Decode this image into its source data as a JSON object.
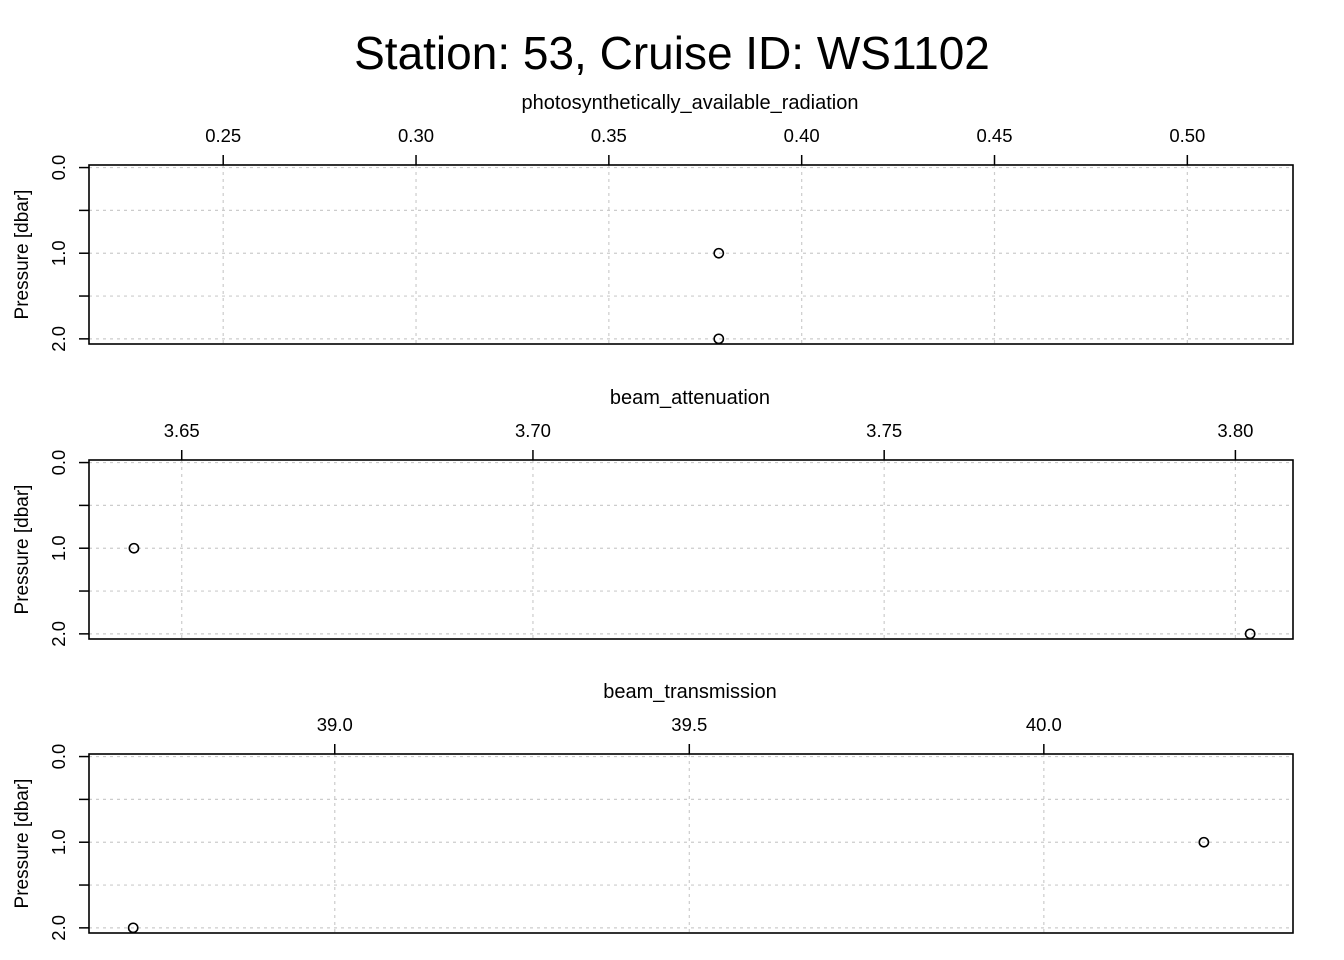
{
  "title": "Station: 53, Cruise ID: WS1102",
  "chart_data": [
    {
      "type": "scatter",
      "title": "photosynthetically_available_radiation",
      "xlabel": "",
      "ylabel": "Pressure [dbar]",
      "xlim": [
        0.2152,
        0.5274
      ],
      "ylim": [
        2.06,
        -0.03
      ],
      "y_reversed": true,
      "x_axis_position": "top",
      "grid": true,
      "xticks": [
        0.25,
        0.3,
        0.35,
        0.4,
        0.45,
        0.5
      ],
      "xtick_labels": [
        "0.25",
        "0.30",
        "0.35",
        "0.40",
        "0.45",
        "0.50"
      ],
      "yticks": [
        0.0,
        0.5,
        1.0,
        1.5,
        2.0
      ],
      "ytick_labels": [
        "0.0",
        "",
        "1.0",
        "",
        "2.0"
      ],
      "x": [
        0.3785,
        0.3785
      ],
      "y": [
        1.0,
        2.0
      ]
    },
    {
      "type": "scatter",
      "title": "beam_attenuation",
      "xlabel": "",
      "ylabel": "Pressure [dbar]",
      "xlim": [
        3.6368,
        3.8082
      ],
      "ylim": [
        2.06,
        -0.03
      ],
      "y_reversed": true,
      "x_axis_position": "top",
      "grid": true,
      "xticks": [
        3.65,
        3.7,
        3.75,
        3.8
      ],
      "xtick_labels": [
        "3.65",
        "3.70",
        "3.75",
        "3.80"
      ],
      "yticks": [
        0.0,
        0.5,
        1.0,
        1.5,
        2.0
      ],
      "ytick_labels": [
        "0.0",
        "",
        "1.0",
        "",
        "2.0"
      ],
      "x": [
        3.6432,
        3.8021
      ],
      "y": [
        1.0,
        2.0
      ]
    },
    {
      "type": "scatter",
      "title": "beam_transmission",
      "xlabel": "",
      "ylabel": "Pressure [dbar]",
      "xlim": [
        38.6534,
        40.3514
      ],
      "ylim": [
        2.06,
        -0.03
      ],
      "y_reversed": true,
      "x_axis_position": "top",
      "grid": true,
      "xticks": [
        39.0,
        39.5,
        40.0
      ],
      "xtick_labels": [
        "39.0",
        "39.5",
        "40.0"
      ],
      "yticks": [
        0.0,
        0.5,
        1.0,
        1.5,
        2.0
      ],
      "ytick_labels": [
        "0.0",
        "",
        "1.0",
        "",
        "2.0"
      ],
      "x": [
        40.2257,
        38.7157
      ],
      "y": [
        1.0,
        2.0
      ]
    }
  ]
}
